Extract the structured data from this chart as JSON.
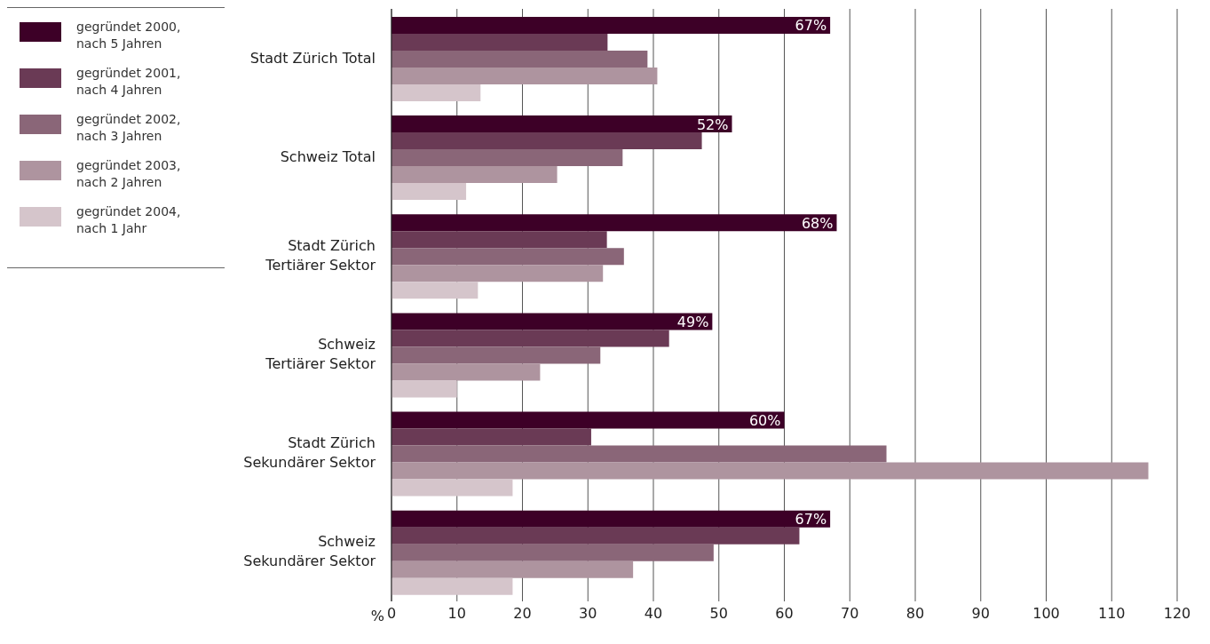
{
  "chart_data": {
    "type": "bar",
    "orientation": "horizontal",
    "xlabel": "%",
    "categories": [
      "Stadt Zürich Total",
      "Schweiz Total",
      "Stadt Zürich\nTertiärer Sektor",
      "Schweiz\nTertiärer Sektor",
      "Stadt Zürich\nSekundärer Sektor",
      "Schweiz\nSekundärer Sektor"
    ],
    "series": [
      {
        "name": "gegründet 2000,\nnach 5 Jahren",
        "color": "#3d0027",
        "values": [
          67,
          52,
          68,
          49,
          60,
          67
        ],
        "value_labels": [
          "67%",
          "52%",
          "68%",
          "49%",
          "60%",
          "67%"
        ]
      },
      {
        "name": "gegründet 2001,\nnach 4 Jahren",
        "color": "#6a3a55",
        "values": [
          33,
          47.4,
          32.9,
          42.4,
          30.5,
          62.3
        ]
      },
      {
        "name": "gegründet 2002,\nnach 3 Jahren",
        "color": "#8a6678",
        "values": [
          39.1,
          35.3,
          35.5,
          31.9,
          75.6,
          49.2
        ]
      },
      {
        "name": "gegründet 2003,\nnach 2 Jahren",
        "color": "#ae949f",
        "values": [
          40.6,
          25.3,
          32.3,
          22.7,
          115.6,
          36.9
        ]
      },
      {
        "name": "gegründet 2004,\nnach 1 Jahr",
        "color": "#d5c5cb",
        "values": [
          13.6,
          11.4,
          13.2,
          10,
          18.5,
          18.5
        ]
      }
    ],
    "xlim": [
      0,
      120
    ],
    "xticks": [
      0,
      10,
      20,
      30,
      40,
      50,
      60,
      70,
      80,
      90,
      100,
      110,
      120
    ],
    "grid": "x",
    "legend": "top left"
  }
}
